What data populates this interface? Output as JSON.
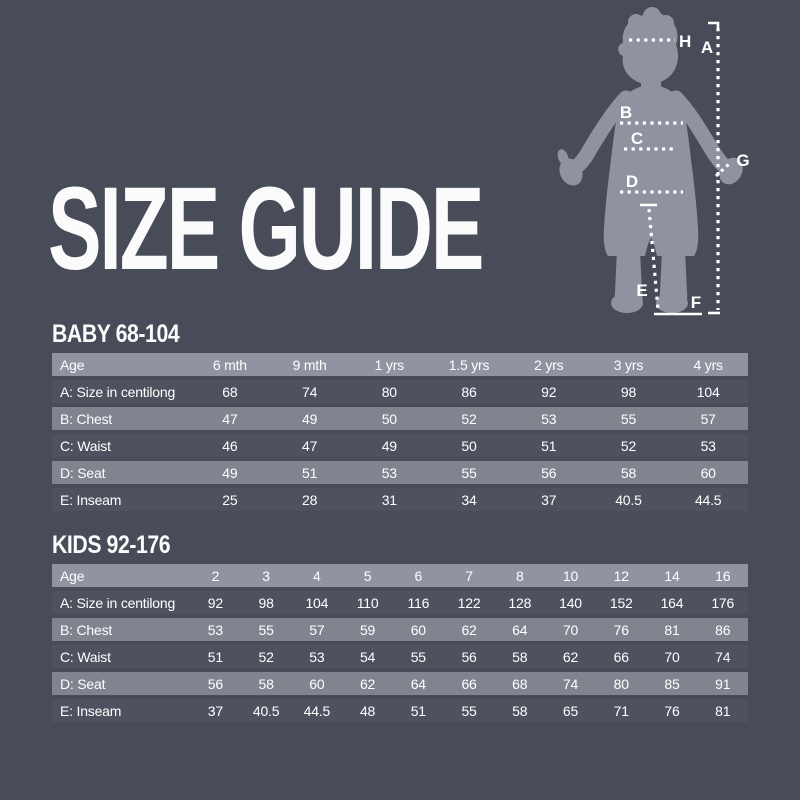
{
  "page": {
    "title": "SIZE GUIDE"
  },
  "colors": {
    "background": "#484c59",
    "header_row": "#9094a0",
    "stripe_row": "#80848f",
    "dark_row": "#4e525f",
    "silhouette": "#8f93a0",
    "text": "#ffffff"
  },
  "figure": {
    "description": "child-silhouette-with-measurement-lines",
    "labels": {
      "a": "A",
      "b": "B",
      "c": "C",
      "d": "D",
      "e": "E",
      "f": "F",
      "g": "G",
      "h": "H"
    }
  },
  "chart_data": [
    {
      "type": "table",
      "title": "BABY 68-104",
      "columns": [
        "Age",
        "6 mth",
        "9 mth",
        "1 yrs",
        "1.5 yrs",
        "2 yrs",
        "3 yrs",
        "4 yrs"
      ],
      "rows": [
        [
          "A: Size in centilong",
          "68",
          "74",
          "80",
          "86",
          "92",
          "98",
          "104"
        ],
        [
          "B: Chest",
          "47",
          "49",
          "50",
          "52",
          "53",
          "55",
          "57"
        ],
        [
          "C: Waist",
          "46",
          "47",
          "49",
          "50",
          "51",
          "52",
          "53"
        ],
        [
          "D: Seat",
          "49",
          "51",
          "53",
          "55",
          "56",
          "58",
          "60"
        ],
        [
          "E: Inseam",
          "25",
          "28",
          "31",
          "34",
          "37",
          "40.5",
          "44.5"
        ]
      ]
    },
    {
      "type": "table",
      "title": "KIDS 92-176",
      "columns": [
        "Age",
        "2",
        "3",
        "4",
        "5",
        "6",
        "7",
        "8",
        "10",
        "12",
        "14",
        "16"
      ],
      "rows": [
        [
          "A: Size in centilong",
          "92",
          "98",
          "104",
          "110",
          "116",
          "122",
          "128",
          "140",
          "152",
          "164",
          "176"
        ],
        [
          "B: Chest",
          "53",
          "55",
          "57",
          "59",
          "60",
          "62",
          "64",
          "70",
          "76",
          "81",
          "86"
        ],
        [
          "C: Waist",
          "51",
          "52",
          "53",
          "54",
          "55",
          "56",
          "58",
          "62",
          "66",
          "70",
          "74"
        ],
        [
          "D: Seat",
          "56",
          "58",
          "60",
          "62",
          "64",
          "66",
          "68",
          "74",
          "80",
          "85",
          "91"
        ],
        [
          "E: Inseam",
          "37",
          "40.5",
          "44.5",
          "48",
          "51",
          "55",
          "58",
          "65",
          "71",
          "76",
          "81"
        ]
      ]
    }
  ]
}
